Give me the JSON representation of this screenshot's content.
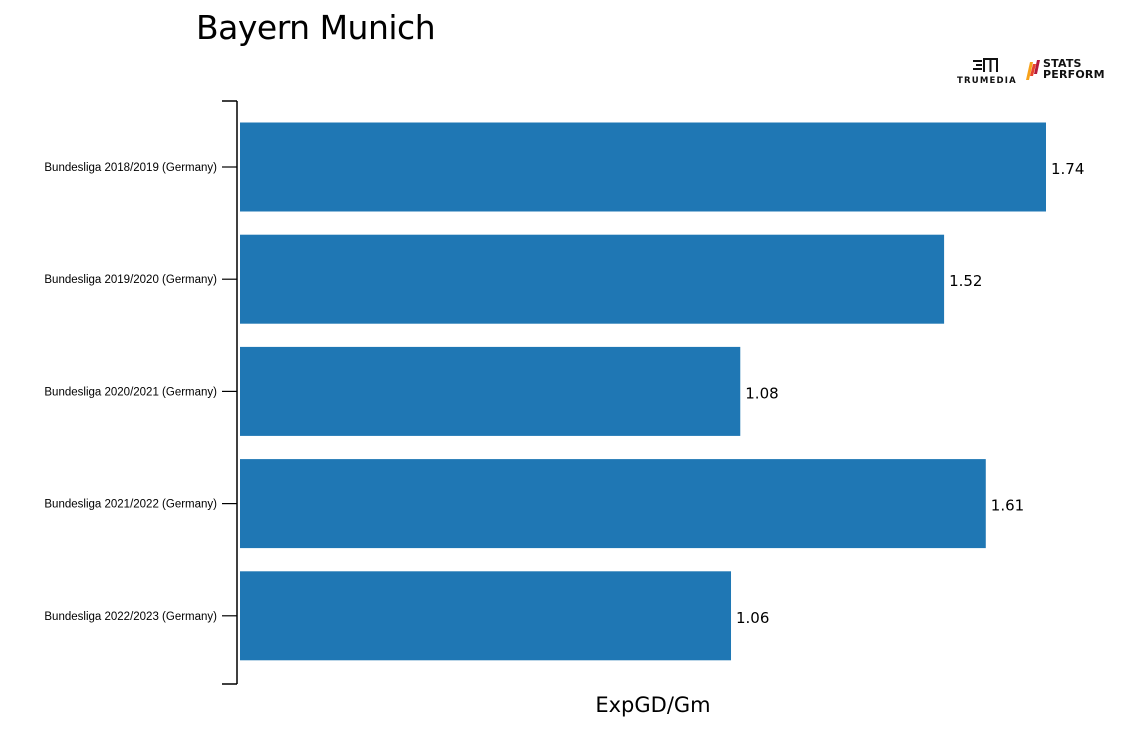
{
  "chart_data": {
    "type": "bar",
    "orientation": "horizontal",
    "title": "Bayern Munich",
    "xlabel": "ExpGD/Gm",
    "ylabel": "",
    "categories": [
      "Bundesliga 2018/2019 (Germany)",
      "Bundesliga 2019/2020 (Germany)",
      "Bundesliga 2020/2021 (Germany)",
      "Bundesliga 2021/2022 (Germany)",
      "Bundesliga 2022/2023 (Germany)"
    ],
    "values": [
      1.74,
      1.52,
      1.08,
      1.61,
      1.06
    ],
    "data_labels": [
      "1.74",
      "1.52",
      "1.08",
      "1.61",
      "1.06"
    ],
    "xlim": [
      0,
      1.74
    ],
    "bar_color": "#1f77b4",
    "grid": false,
    "legend": "none"
  },
  "branding": {
    "trumedia_text": "TRUMEDIA",
    "statsperform_line1": "STATS",
    "statsperform_line2": "PERFORM",
    "statsperform_colors": [
      "#f7a21b",
      "#e8432b",
      "#b51a3a"
    ]
  }
}
